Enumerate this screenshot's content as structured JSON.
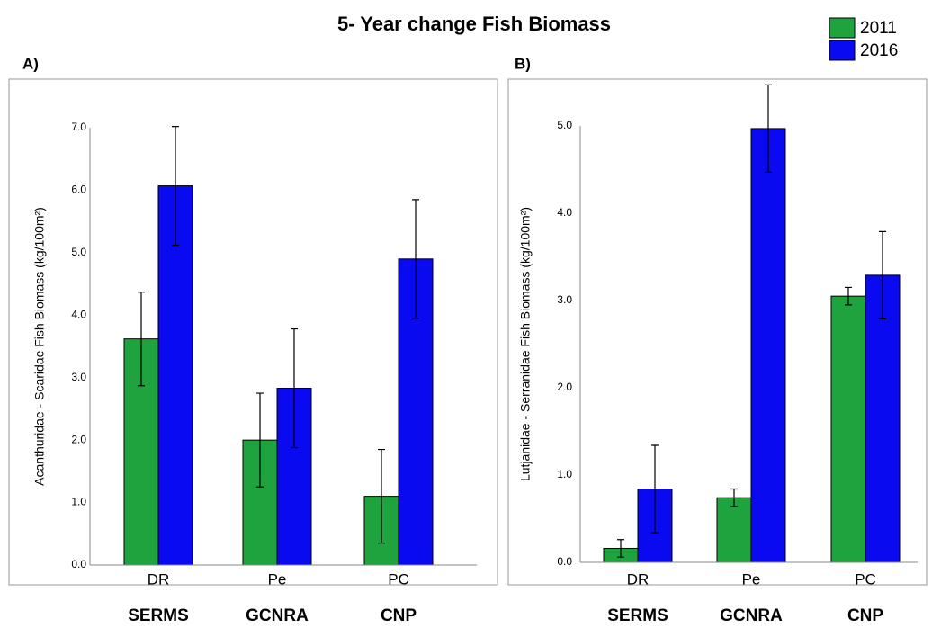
{
  "title": "5- Year change Fish Biomass",
  "chart_data": [
    {
      "type": "bar",
      "panel_label": "A)",
      "ylabel": "Acanthuridae - Scaridae Fish Biomass (kg/100m²)",
      "categories": [
        "DR",
        "Pe",
        "PC"
      ],
      "groups": [
        "SERMS",
        "GCNRA",
        "CNP"
      ],
      "series": [
        {
          "name": "2011",
          "color": "#1fa33f",
          "values": [
            3.62,
            2.0,
            1.1
          ],
          "errors": [
            0.75,
            0.75,
            0.75
          ]
        },
        {
          "name": "2016",
          "color": "#0a0af0",
          "values": [
            6.07,
            2.83,
            4.9
          ],
          "errors": [
            0.95,
            0.95,
            0.95
          ]
        }
      ],
      "ylim": [
        0,
        7
      ],
      "yticks": [
        {
          "value": 0,
          "label": "0.0"
        },
        {
          "value": 1,
          "label": "1.0"
        },
        {
          "value": 2,
          "label": "2.0"
        },
        {
          "value": 3,
          "label": "3.0"
        },
        {
          "value": 4,
          "label": "4.0"
        },
        {
          "value": 5,
          "label": "5.0"
        },
        {
          "value": 6,
          "label": "6.0"
        },
        {
          "value": 7,
          "label": "7.0"
        }
      ]
    },
    {
      "type": "bar",
      "panel_label": "B)",
      "ylabel": "Lutjanidae - Serranidae Fish  Biomass (kg/100m²)",
      "categories": [
        "DR",
        "Pe",
        "PC"
      ],
      "groups": [
        "SERMS",
        "GCNRA",
        "CNP"
      ],
      "series": [
        {
          "color": "#1fa33f",
          "values": [
            0.16,
            0.74,
            3.05
          ],
          "errors": [
            0.1,
            0.1,
            0.1
          ]
        },
        {
          "color": "#0a0af0",
          "values": [
            0.84,
            4.97,
            3.29
          ],
          "errors": [
            0.5,
            0.5,
            0.5
          ]
        }
      ],
      "ylim": [
        0,
        5
      ],
      "yticks": [
        {
          "value": 0,
          "label": "0.0"
        },
        {
          "value": 1,
          "label": "1.0"
        },
        {
          "value": 2,
          "label": "2.0"
        },
        {
          "value": 3,
          "label": "3.0"
        },
        {
          "value": 4,
          "label": "4.0"
        },
        {
          "value": 5,
          "label": "5.0"
        }
      ]
    }
  ]
}
